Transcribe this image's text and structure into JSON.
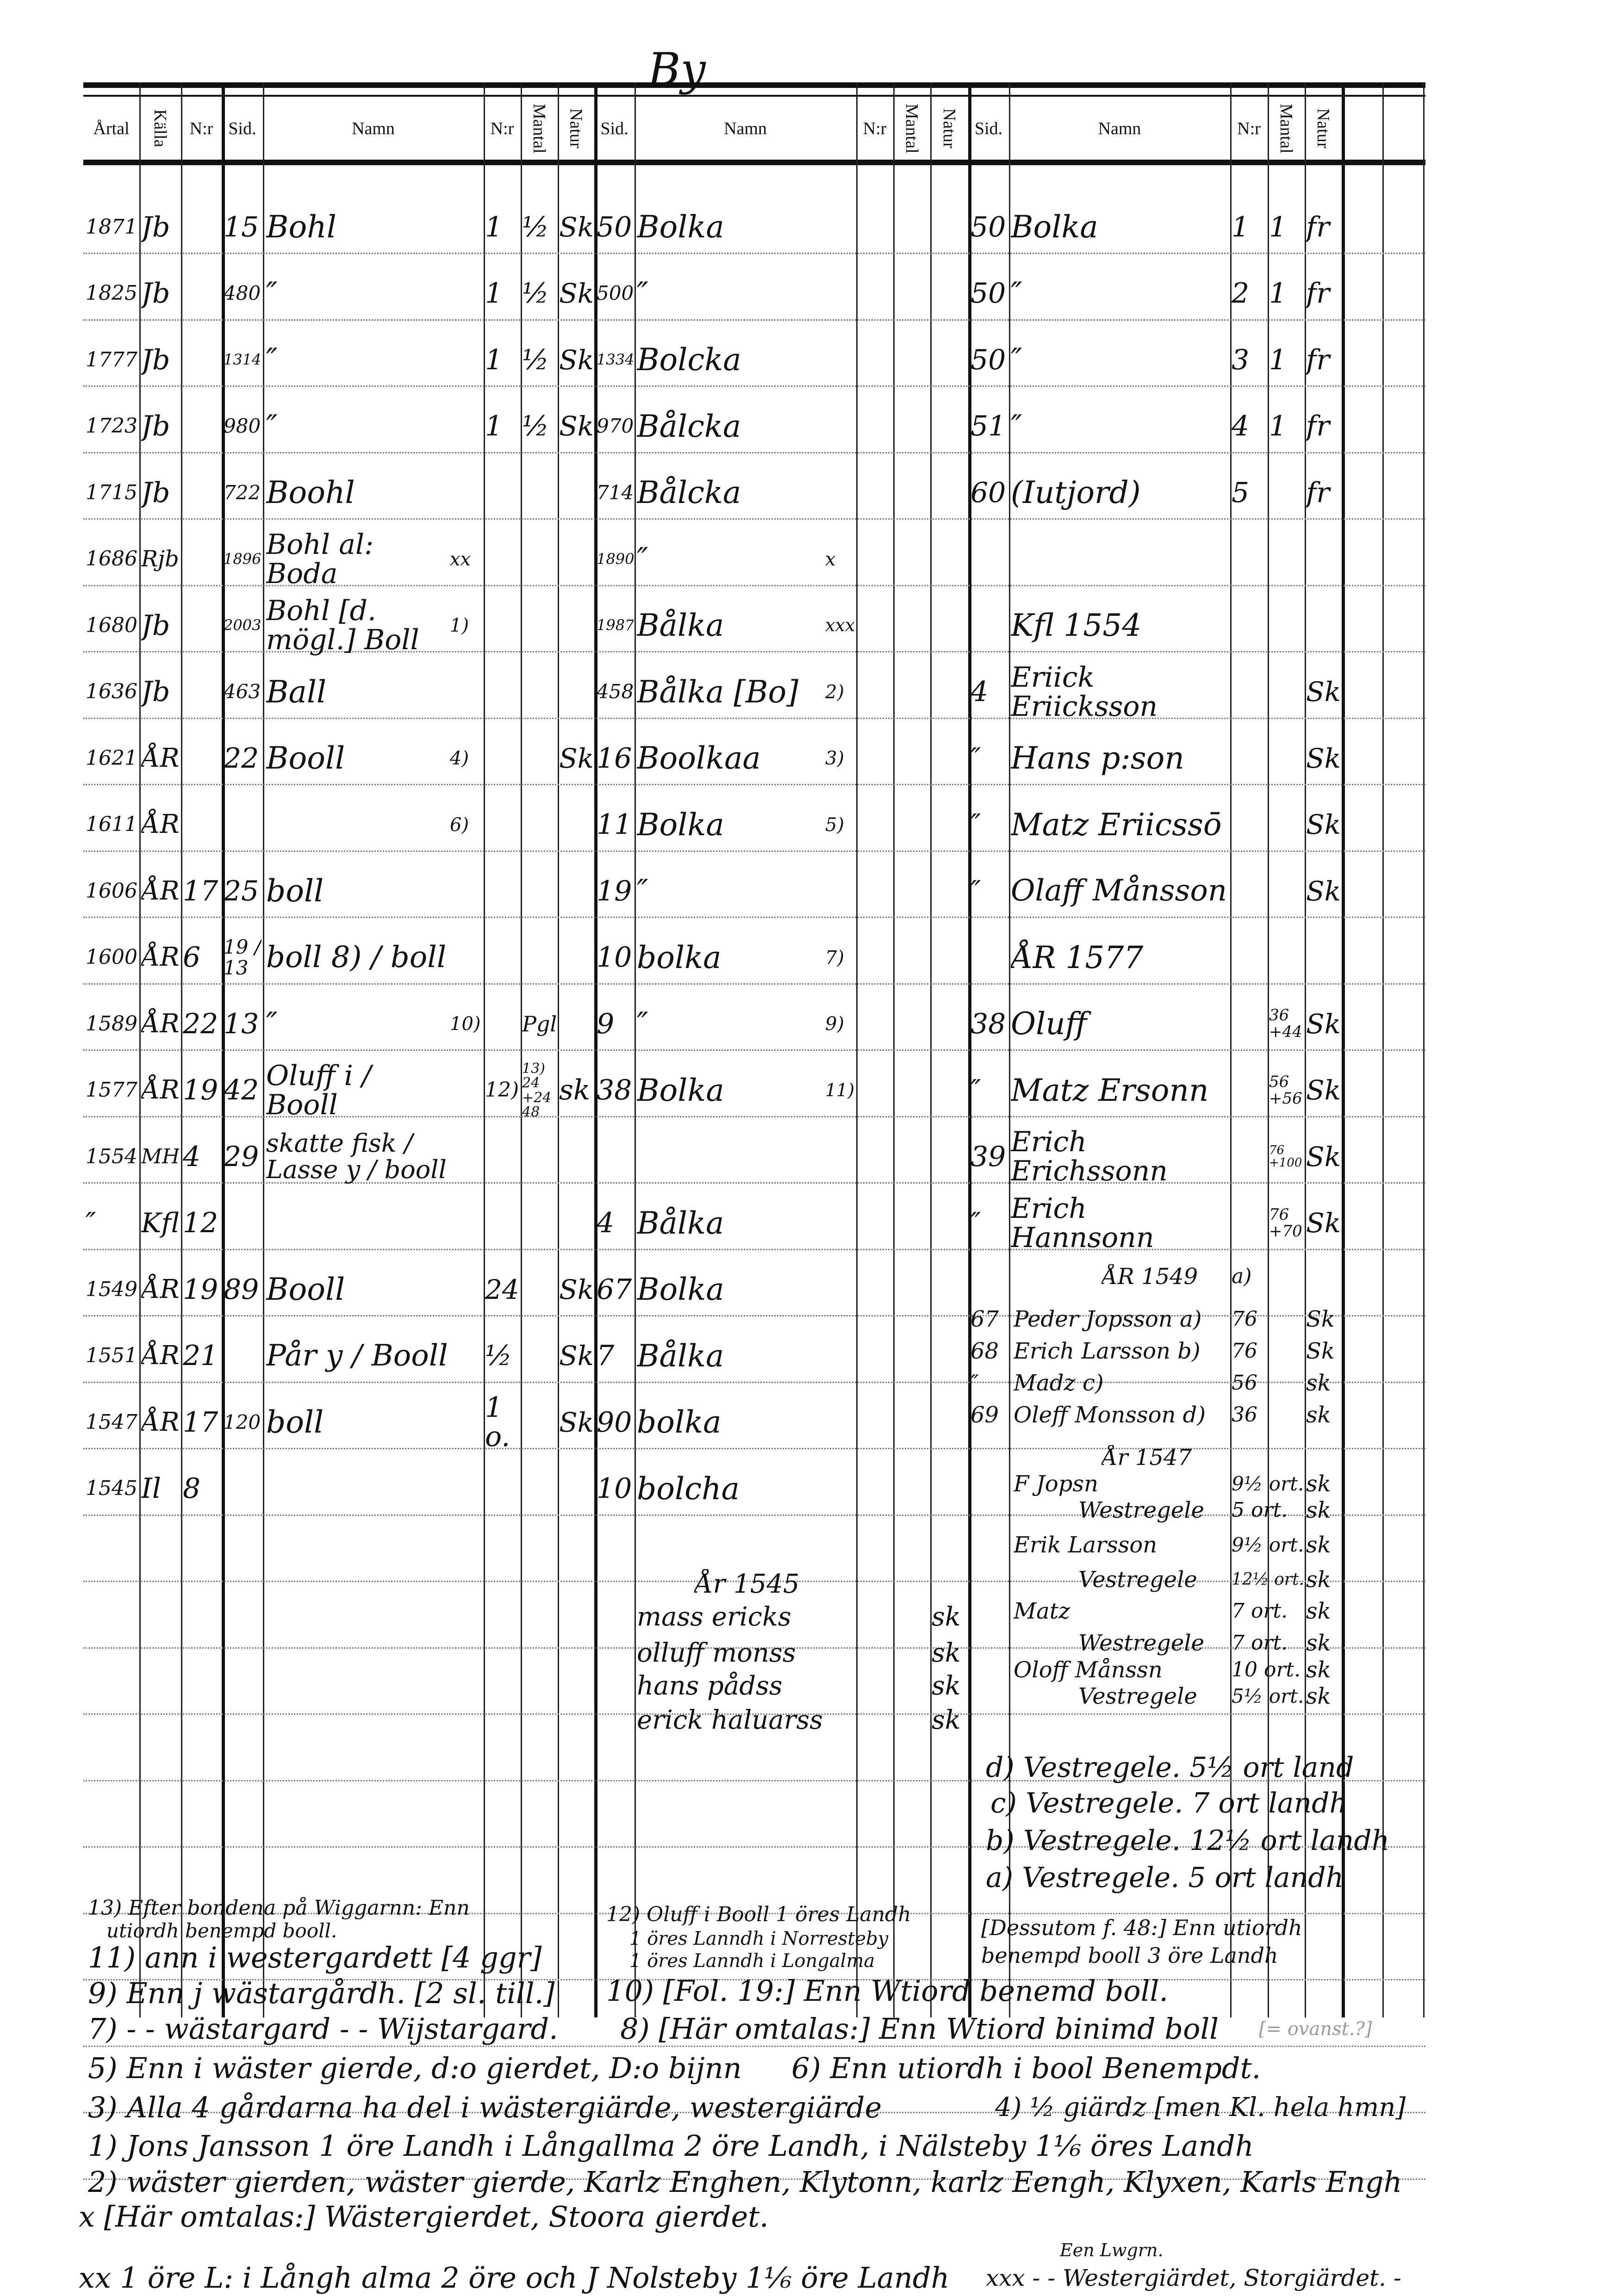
{
  "header": {
    "title": "By",
    "columns": [
      "Årtal",
      "Källa",
      "N:r",
      "Sid.",
      "Namn",
      "N:r",
      "Mantal",
      "Natur",
      "Sid.",
      "Namn",
      "N:r",
      "Mantal",
      "Natur",
      "Sid.",
      "Namn",
      "N:r",
      "Mantal",
      "Natur"
    ]
  },
  "rows": [
    {
      "year": "1871",
      "source": "Jb",
      "sid": "15",
      "name": "Bohl",
      "nr1": "1",
      "mantal1": "½",
      "natur1": "Sk",
      "sid2": "50",
      "name2": "Bolka",
      "sid3": "50",
      "name3": "Bolka",
      "nr3": "1",
      "mantal3": "1",
      "natur3": "fr"
    },
    {
      "year": "1825",
      "source": "Jb",
      "sid": "480",
      "name": "″",
      "nr1": "1",
      "mantal1": "½",
      "natur1": "Sk",
      "sid2": "500",
      "name2": "″",
      "sid3": "50",
      "name3": "″",
      "nr3": "2",
      "mantal3": "1",
      "natur3": "fr"
    },
    {
      "year": "1777",
      "source": "Jb",
      "sid": "1314",
      "name": "″",
      "nr1": "1",
      "mantal1": "½",
      "natur1": "Sk",
      "sid2": "1334",
      "name2": "Bolcka",
      "sid3": "50",
      "name3": "″",
      "nr3": "3",
      "mantal3": "1",
      "natur3": "fr"
    },
    {
      "year": "1723",
      "source": "Jb",
      "sid": "980",
      "name": "″",
      "nr1": "1",
      "mantal1": "½",
      "natur1": "Sk",
      "sid2": "970",
      "name2": "Bålcka",
      "sid3": "51",
      "name3": "″",
      "nr3": "4",
      "mantal3": "1",
      "natur3": "fr"
    },
    {
      "year": "1715",
      "source": "Jb",
      "sid": "722",
      "name": "Boohl",
      "sid2": "714",
      "name2": "Bålcka",
      "sid3": "60",
      "name3": "(Iutjord)",
      "nr3": "5",
      "natur3": "fr"
    },
    {
      "year": "1686",
      "source": "Rjb",
      "sid": "1896",
      "name": "Bohl al: Boda",
      "note1": "xx",
      "sid2": "1890",
      "name2": "″",
      "note2": "x"
    },
    {
      "year": "1680",
      "source": "Jb",
      "sid": "2003",
      "name": "Bohl [d. mögl.] Boll",
      "note1": "1)",
      "sid2": "1987",
      "name2": "Bålka",
      "note2": "xxx",
      "name3": "Kfl 1554"
    },
    {
      "year": "1636",
      "source": "Jb",
      "sid": "463",
      "name": "Ball",
      "sid2": "458",
      "name2": "Bålka [Bo]",
      "note2": "2)",
      "sid3": "4",
      "name3": "Eriick Eriicksson",
      "natur3": "Sk"
    },
    {
      "year": "1621",
      "source": "ÅR",
      "sid": "22",
      "name": "Booll",
      "note1": "4)",
      "natur1": "Sk",
      "sid2": "16",
      "name2": "Boolkaa",
      "note2": "3)",
      "sid3": "″",
      "name3": "Hans p:son",
      "natur3": "Sk"
    },
    {
      "year": "1611",
      "source": "ÅR",
      "note1": "6)",
      "sid2": "11",
      "name2": "Bolka",
      "note2": "5)",
      "sid3": "″",
      "name3": "Matz Eriicssō",
      "natur3": "Sk"
    },
    {
      "year": "1606",
      "source": "ÅR",
      "nr": "17",
      "sid": "25",
      "name": "boll",
      "sid2": "19",
      "name2": "″",
      "sid3": "″",
      "name3": "Olaff Månsson",
      "natur3": "Sk"
    },
    {
      "year": "1600",
      "source": "ÅR",
      "nr": "6",
      "sid": "19 / 13",
      "name": "boll 8) / boll",
      "sid2": "10",
      "name2": "bolka",
      "note2": "7)",
      "name3": "ÅR 1577"
    },
    {
      "year": "1589",
      "source": "ÅR",
      "nr": "22",
      "sid": "13",
      "name": "″",
      "note1": "10)",
      "mantal1": "Pgl",
      "sid2": "9",
      "name2": "″",
      "note2": "9)",
      "sid3": "38",
      "name3": "Oluff",
      "mantal3": "36 +44",
      "natur3": "Sk"
    },
    {
      "year": "1577",
      "source": "ÅR",
      "nr": "19",
      "sid": "42",
      "name": "Oluff i / Booll",
      "nr1": "12)",
      "mantal1": "13) 24 +24 48",
      "natur1": "sk",
      "sid2": "38",
      "name2": "Bolka",
      "note2": "11)",
      "sid3": "″",
      "name3": "Matz Ersonn",
      "mantal3": "56 +56",
      "natur3": "Sk"
    },
    {
      "year": "1554",
      "source": "MH",
      "nr": "4",
      "sid": "29",
      "name": "skatte fisk / Lasse y / booll",
      "sid3": "39",
      "name3": "Erich Erichssonn",
      "mantal3": "76 +100",
      "natur3": "Sk"
    },
    {
      "year": "″",
      "source": "Kfl",
      "nr": "12",
      "sid2": "4",
      "name2": "Bålka",
      "sid3": "″",
      "name3": "Erich Hannsonn",
      "mantal3": "76 +70",
      "natur3": "Sk"
    },
    {
      "year": "1549",
      "source": "ÅR",
      "nr": "19",
      "sid": "89",
      "name": "Booll",
      "nr1": "24",
      "natur1": "Sk",
      "sid2": "67",
      "name2": "Bolka"
    },
    {
      "year": "1551",
      "source": "ÅR",
      "nr": "21",
      "name": "Pår y / Booll",
      "nr1": "½",
      "natur1": "Sk",
      "sid2": "7",
      "name2": "Bålka"
    },
    {
      "year": "1547",
      "source": "ÅR",
      "nr": "17",
      "sid": "120",
      "name": "boll",
      "nr1": "1 o.",
      "natur1": "Sk",
      "sid2": "90",
      "name2": "bolka"
    },
    {
      "year": "1545",
      "source": "Il",
      "nr": "8",
      "sid2": "10",
      "name2": "bolcha"
    }
  ],
  "right_block": [
    {
      "name": "ÅR 1549",
      "mantal": "a)"
    },
    {
      "sid": "67",
      "name": "Peder Jopsson a)",
      "mantal": "76",
      "natur": "Sk"
    },
    {
      "sid": "68",
      "name": "Erich Larsson b)",
      "mantal": "76",
      "natur": "Sk"
    },
    {
      "sid": "″",
      "name": "Madz c)",
      "mantal": "56",
      "natur": "sk"
    },
    {
      "sid": "69",
      "name": "Oleff Monsson d)",
      "mantal": "36",
      "natur": "sk"
    },
    {
      "name": "År 1547"
    },
    {
      "name": "F Jopsn",
      "mantal": "9½ ort.",
      "natur": "sk"
    },
    {
      "name": "Westregele",
      "mantal": "5 ort.",
      "natur": "sk"
    },
    {
      "name": "Erik Larsson",
      "mantal": "9½ ort.",
      "natur": "sk"
    },
    {
      "name": "Vestregele",
      "mantal": "12½ ort.",
      "natur": "sk"
    },
    {
      "name": "Matz",
      "mantal": "7 ort.",
      "natur": "sk"
    },
    {
      "name": "Westregele",
      "mantal": "7 ort.",
      "natur": "sk"
    },
    {
      "name": "Oloff Månssn",
      "mantal": "10 ort.",
      "natur": "sk"
    },
    {
      "name": "Vestregele",
      "mantal": "5½ ort.",
      "natur": "sk"
    }
  ],
  "middle_block": {
    "heading": "År 1545",
    "names": [
      "mass ericks",
      "olluff monss",
      "hans pådss",
      "erick haluarss"
    ],
    "natur": [
      "sk",
      "sk",
      "sk",
      "sk"
    ]
  },
  "right_notes": [
    "d) Vestregele. 5½ ort land",
    "c) Vestregele. 7 ort landh",
    "b) Vestregele. 12½ ort landh",
    "a) Vestregele. 5 ort landh"
  ],
  "footnotes": {
    "n13": "13) Efter bondena på Wiggarnn: Enn",
    "n13b": "utiordh benempd booll.",
    "n11": "11) ann i westergardett [4 ggr]",
    "n9": "9) Enn j wästargårdh. [2 sl. till.]",
    "n7": "7) - - wästargard - - Wijstargard.",
    "n5": "5) Enn i wäster gierde, d:o gierdet, D:o bijnn",
    "n6": "6) Enn utiordh i bool Benempdt.",
    "n3": "3) Alla 4 gårdarna ha del i wästergiärde, westergiärde",
    "n4": "4) ½ giärdz [men Kl. hela hmn]",
    "n1": "1) Jons Jansson 1 öre Landh i Långallma 2 öre Landh, i Nälsteby 1⅙ öres Landh",
    "n2": "2) wäster gierden, wäster gierde, Karlz Enghen, Klytonn, karlz Eengh, Klyxen, Karls Engh",
    "nx": "x [Här omtalas:] Wästergierdet, Stoora gierdet.",
    "nxx": "xx 1 öre L: i Långh alma 2 öre och J Nolsteby 1⅙ öre Landh",
    "nxxx": "xxx - - Westergiärdet, Storgiärdet. -",
    "nxxx_above": "Een Lwgrn.",
    "n12a": "12) Oluff i Booll 1 öres Landh",
    "n12b": "1 öres Lanndh i Norresteby",
    "n12c": "1 öres Lanndh i Longalma",
    "n12d": "[Dessutom f. 48:] Enn utiordh",
    "n12e": "benempd booll 3 öre Landh",
    "n10": "10) [Fol. 19:] Enn Wtiord benemd boll.",
    "n8": "8) [Här omtalas:] Enn Wtiord binimd boll",
    "n8b": "[= ovanst.?]"
  }
}
